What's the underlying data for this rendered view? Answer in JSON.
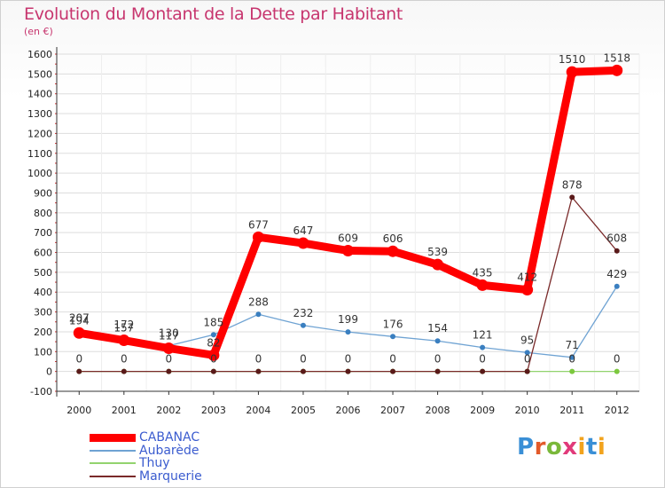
{
  "title": "Evolution du Montant de la Dette par Habitant",
  "subtitle": "(en €)",
  "logo": "Proxiti",
  "chart_data": {
    "type": "line",
    "title": "Evolution du Montant de la Dette par Habitant",
    "subtitle": "(en €)",
    "x": [
      "2000",
      "2001",
      "2002",
      "2003",
      "2004",
      "2005",
      "2006",
      "2007",
      "2008",
      "2009",
      "2010",
      "2011",
      "2012"
    ],
    "ylim": [
      -100,
      1600
    ],
    "yticks": [
      -100,
      0,
      100,
      200,
      300,
      400,
      500,
      600,
      700,
      800,
      900,
      1000,
      1100,
      1200,
      1300,
      1400,
      1500,
      1600
    ],
    "grid": true,
    "legend_position": "bottom-left",
    "series": [
      {
        "name": "CABANAC",
        "color": "#ff0000",
        "values": [
          194,
          157,
          117,
          82,
          677,
          647,
          609,
          606,
          539,
          435,
          412,
          1510,
          1518
        ]
      },
      {
        "name": "Aubarède",
        "color": "#6fa3d3",
        "values": [
          207,
          172,
          130,
          185,
          288,
          232,
          199,
          176,
          154,
          121,
          95,
          71,
          429
        ]
      },
      {
        "name": "Thuy",
        "color": "#92d36e",
        "values": [
          0,
          0,
          0,
          0,
          0,
          0,
          0,
          0,
          0,
          0,
          0,
          0,
          0
        ]
      },
      {
        "name": "Marquerie",
        "color": "#7a2a2a",
        "values": [
          0,
          0,
          0,
          0,
          0,
          0,
          0,
          0,
          0,
          0,
          0,
          878,
          608
        ]
      }
    ]
  }
}
